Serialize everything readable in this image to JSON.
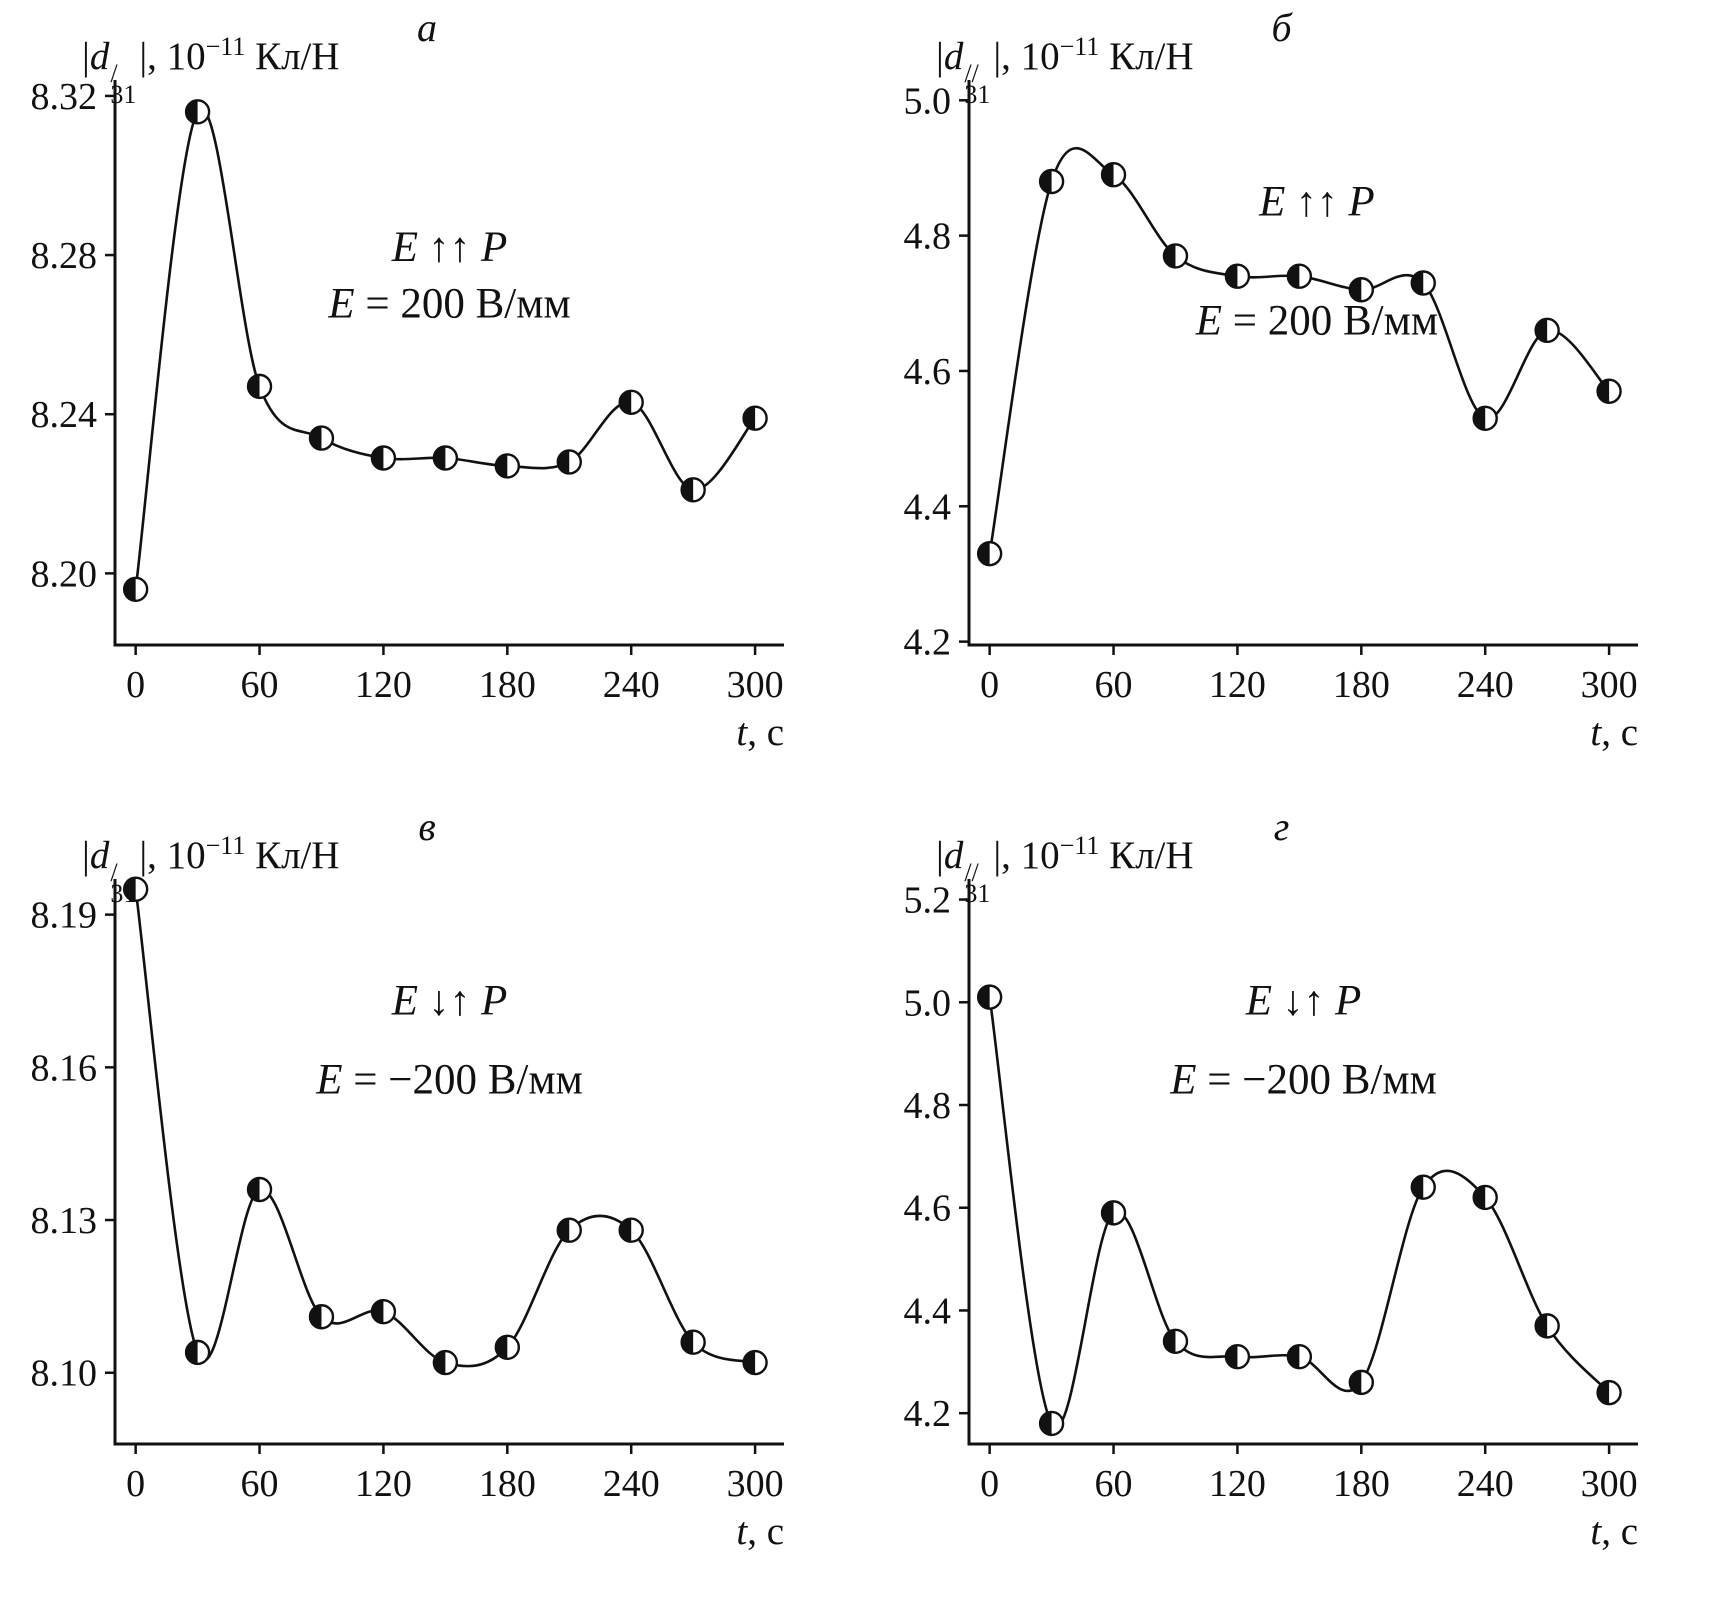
{
  "figure": {
    "background": "#ffffff",
    "line_color": "#111111",
    "marker_style": "half-filled-circle"
  },
  "chart_data": [
    {
      "id": "panel-a",
      "panel_label": "а",
      "type": "line",
      "ylabel": {
        "open": "|",
        "variable": "d",
        "prime": "/",
        "subscript": "31",
        "close": "|, 10",
        "exponent": "−11",
        "unit": " Кл/Н"
      },
      "xlabel": {
        "variable": "t",
        "rest": ", с"
      },
      "annotation": {
        "var1": "E",
        "arrows": "↑↑",
        "var2": "P",
        "line2_var": "E",
        "line2_rest": " = 200 В/мм",
        "x": 0.5,
        "y1": 0.32,
        "y2": 0.42
      },
      "x": [
        0,
        30,
        60,
        90,
        120,
        150,
        180,
        210,
        240,
        270,
        300
      ],
      "y": [
        8.196,
        8.316,
        8.247,
        8.234,
        8.229,
        8.229,
        8.227,
        8.228,
        8.243,
        8.221,
        8.239
      ],
      "xlim": [
        -10,
        314
      ],
      "ylim": [
        8.182,
        8.324
      ],
      "xticks": [
        0,
        60,
        120,
        180,
        240,
        300
      ],
      "xtick_labels": [
        "0",
        "60",
        "120",
        "180",
        "240",
        "300"
      ],
      "yticks": [
        8.2,
        8.24,
        8.28,
        8.32
      ],
      "ytick_labels": [
        "8.20",
        "8.24",
        "8.28",
        "8.32"
      ]
    },
    {
      "id": "panel-b",
      "panel_label": "б",
      "type": "line",
      "ylabel": {
        "open": "|",
        "variable": "d",
        "prime": "//",
        "subscript": "31",
        "close": "|, 10",
        "exponent": "−11",
        "unit": " Кл/Н"
      },
      "xlabel": {
        "variable": "t",
        "rest": ", с"
      },
      "annotation": {
        "var1": "E",
        "arrows": "↑↑",
        "var2": "P",
        "line2_var": "E",
        "line2_rest": " = 200 В/мм",
        "x": 0.52,
        "y1": 0.24,
        "y2": 0.45
      },
      "x": [
        0,
        30,
        60,
        90,
        120,
        150,
        180,
        210,
        240,
        270,
        300
      ],
      "y": [
        4.33,
        4.88,
        4.89,
        4.77,
        4.74,
        4.74,
        4.72,
        4.73,
        4.53,
        4.66,
        4.57
      ],
      "xlim": [
        -10,
        314
      ],
      "ylim": [
        4.195,
        5.03
      ],
      "xticks": [
        0,
        60,
        120,
        180,
        240,
        300
      ],
      "xtick_labels": [
        "0",
        "60",
        "120",
        "180",
        "240",
        "300"
      ],
      "yticks": [
        4.2,
        4.4,
        4.6,
        4.8,
        5.0
      ],
      "ytick_labels": [
        "4.2",
        "4.4",
        "4.6",
        "4.8",
        "5.0"
      ]
    },
    {
      "id": "panel-v",
      "panel_label": "в",
      "type": "line",
      "ylabel": {
        "open": "|",
        "variable": "d",
        "prime": "/",
        "subscript": "31",
        "close": "|, 10",
        "exponent": "−11",
        "unit": " Кл/Н"
      },
      "xlabel": {
        "variable": "t",
        "rest": ", с"
      },
      "annotation": {
        "var1": "E",
        "arrows": "↓↑",
        "var2": "P",
        "line2_var": "E",
        "line2_rest": " = −200 В/мм",
        "x": 0.5,
        "y1": 0.24,
        "y2": 0.38
      },
      "x": [
        0,
        30,
        60,
        90,
        120,
        150,
        180,
        210,
        240,
        270,
        300
      ],
      "y": [
        8.195,
        8.104,
        8.136,
        8.111,
        8.112,
        8.102,
        8.105,
        8.128,
        8.128,
        8.106,
        8.102
      ],
      "xlim": [
        -10,
        314
      ],
      "ylim": [
        8.086,
        8.197
      ],
      "xticks": [
        0,
        60,
        120,
        180,
        240,
        300
      ],
      "xtick_labels": [
        "0",
        "60",
        "120",
        "180",
        "240",
        "300"
      ],
      "yticks": [
        8.1,
        8.13,
        8.16,
        8.19
      ],
      "ytick_labels": [
        "8.10",
        "8.13",
        "8.16",
        "8.19"
      ]
    },
    {
      "id": "panel-g",
      "panel_label": "г",
      "type": "line",
      "ylabel": {
        "open": "|",
        "variable": "d",
        "prime": "//",
        "subscript": "31",
        "close": "|, 10",
        "exponent": "−11",
        "unit": " Кл/Н"
      },
      "xlabel": {
        "variable": "t",
        "rest": ", с"
      },
      "annotation": {
        "var1": "E",
        "arrows": "↓↑",
        "var2": "P",
        "line2_var": "E",
        "line2_rest": " = −200 В/мм",
        "x": 0.5,
        "y1": 0.24,
        "y2": 0.38
      },
      "x": [
        0,
        30,
        60,
        90,
        120,
        150,
        180,
        210,
        240,
        270,
        300
      ],
      "y": [
        5.01,
        4.18,
        4.59,
        4.34,
        4.31,
        4.31,
        4.26,
        4.64,
        4.62,
        4.37,
        4.24
      ],
      "xlim": [
        -10,
        314
      ],
      "ylim": [
        4.14,
        5.24
      ],
      "xticks": [
        0,
        60,
        120,
        180,
        240,
        300
      ],
      "xtick_labels": [
        "0",
        "60",
        "120",
        "180",
        "240",
        "300"
      ],
      "yticks": [
        4.2,
        4.4,
        4.6,
        4.8,
        5.0,
        5.2
      ],
      "ytick_labels": [
        "4.2",
        "4.4",
        "4.6",
        "4.8",
        "5.0",
        "5.2"
      ]
    }
  ]
}
